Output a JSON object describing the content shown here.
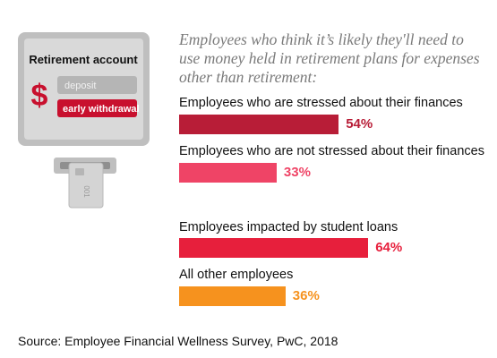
{
  "chart_data": {
    "type": "bar",
    "orientation": "horizontal",
    "title": "Employees who think it’s likely they'll need to use money held in retirement plans for expenses other than retirement:",
    "categories": [
      "Employees who are stressed about their finances",
      "Employees who are not stressed about their finances",
      "Employees impacted by student loans",
      "All other employees"
    ],
    "values": [
      54,
      33,
      64,
      36
    ],
    "value_labels": [
      "54%",
      "33%",
      "64%",
      "36%"
    ],
    "unit": "%",
    "colors": [
      "#b81d37",
      "#ef4466",
      "#e71f3c",
      "#f6921e"
    ],
    "value_label_colors": [
      "#b81d37",
      "#ef4466",
      "#e71f3c",
      "#f6921e"
    ],
    "xlim": [
      0,
      100
    ],
    "grid": false,
    "legend": "none"
  },
  "illustration": {
    "panel_title": "Retirement account",
    "currency_symbol": "$",
    "deposit_label": "deposit",
    "withdrawal_label": "early withdrawal",
    "card_text": "001",
    "icons": [
      "atm-screen-icon",
      "dollar-sign-icon",
      "card-slot-icon",
      "bank-card-icon"
    ],
    "colors": {
      "accent": "#c8102e",
      "screen": "#d9d9d9",
      "frame": "#bdbdbd",
      "button_gray": "#b5b5b5"
    }
  },
  "source": "Source: Employee Financial Wellness Survey, PwC, 2018"
}
